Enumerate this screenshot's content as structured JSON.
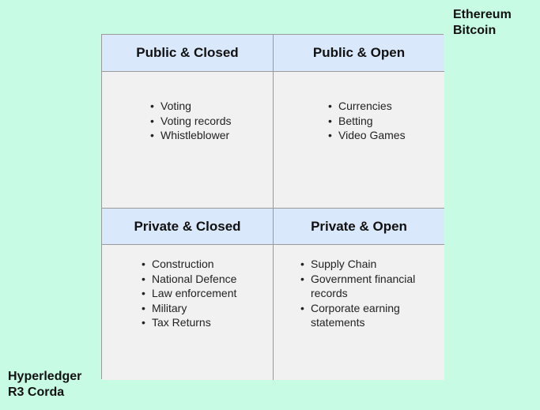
{
  "top_right_label": [
    "Ethereum",
    "Bitcoin"
  ],
  "bottom_left_label": [
    "Hyperledger",
    "R3 Corda"
  ],
  "quadrants": {
    "public_closed": {
      "title": "Public & Closed",
      "items": [
        "Voting",
        "Voting records",
        "Whistleblower"
      ]
    },
    "public_open": {
      "title": "Public & Open",
      "items": [
        "Currencies",
        "Betting",
        "Video Games"
      ]
    },
    "private_closed": {
      "title": "Private & Closed",
      "items": [
        "Construction",
        "National Defence",
        "Law enforcement",
        "Military",
        "Tax Returns"
      ]
    },
    "private_open": {
      "title": "Private & Open",
      "items": [
        "Supply Chain",
        "Government financial records",
        "Corporate earning statements"
      ]
    }
  },
  "colors": {
    "background": "#c8fbe3",
    "header": "#d9e8fb",
    "cell": "#f1f1f1",
    "border": "#9a9a9a"
  }
}
